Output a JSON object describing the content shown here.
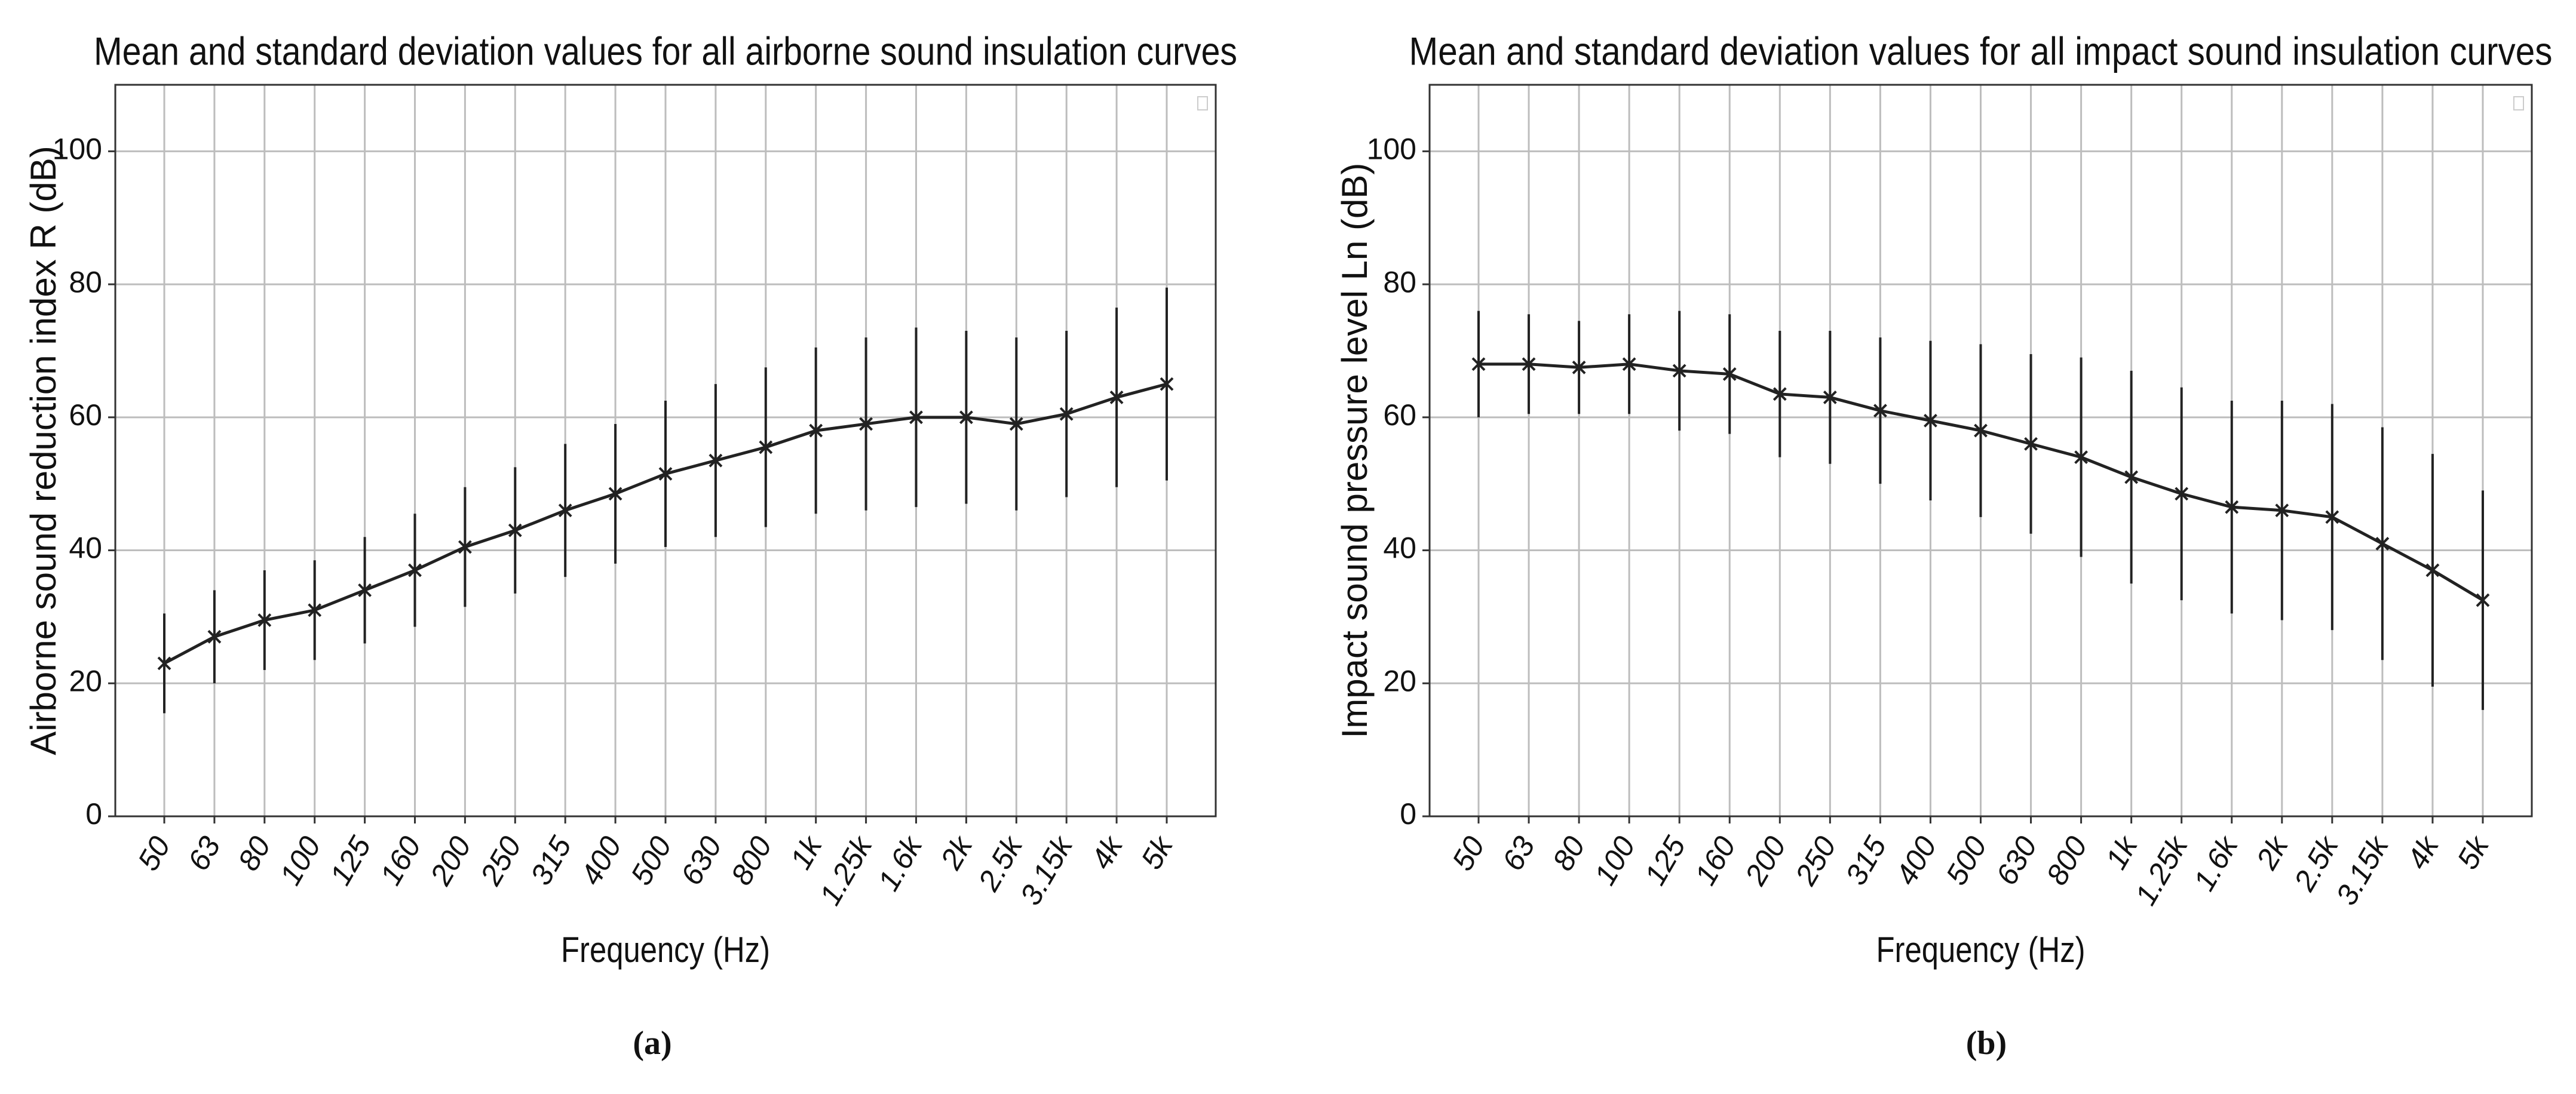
{
  "chart_data": [
    {
      "type": "errorbar",
      "title": "Mean and standard deviation values for all airborne sound insulation curves",
      "x_label": "Frequency (Hz)",
      "y_label": "Airborne sound reduction index R (dB)",
      "caption": "(a)",
      "categories": [
        "50",
        "63",
        "80",
        "100",
        "125",
        "160",
        "200",
        "250",
        "315",
        "400",
        "500",
        "630",
        "800",
        "1k",
        "1.25k",
        "1.6k",
        "2k",
        "2.5k",
        "3.15k",
        "4k",
        "5k"
      ],
      "values": [
        23,
        27,
        29.5,
        31,
        34,
        37,
        40.5,
        43,
        46,
        48.5,
        51.5,
        53.5,
        55.5,
        58,
        59,
        60,
        60,
        59,
        60.5,
        63,
        65
      ],
      "errors": [
        7.5,
        7,
        7.5,
        7.5,
        8,
        8.5,
        9,
        9.5,
        10,
        10.5,
        11,
        11.5,
        12,
        12.5,
        13,
        13.5,
        13,
        13,
        12.5,
        13.5,
        14.5
      ],
      "color": "#222222",
      "ylim": [
        0,
        110
      ],
      "yticks": [
        0,
        20,
        40,
        60,
        80,
        100
      ],
      "grid": true
    },
    {
      "type": "errorbar",
      "title": "Mean and standard deviation values for all impact sound insulation curves",
      "x_label": "Frequency (Hz)",
      "y_label": "Impact sound pressure level Ln (dB)",
      "caption": "(b)",
      "categories": [
        "50",
        "63",
        "80",
        "100",
        "125",
        "160",
        "200",
        "250",
        "315",
        "400",
        "500",
        "630",
        "800",
        "1k",
        "1.25k",
        "1.6k",
        "2k",
        "2.5k",
        "3.15k",
        "4k",
        "5k"
      ],
      "values": [
        68,
        68,
        67.5,
        68,
        67,
        66.5,
        63.5,
        63,
        61,
        59.5,
        58,
        56,
        54,
        51,
        48.5,
        46.5,
        46,
        45,
        41,
        37,
        32.5
      ],
      "errors": [
        8,
        7.5,
        7,
        7.5,
        9,
        9,
        9.5,
        10,
        11,
        12,
        13,
        13.5,
        15,
        16,
        16,
        16,
        16.5,
        17,
        17.5,
        17.5,
        16.5
      ],
      "color": "#222222",
      "ylim": [
        0,
        110
      ],
      "yticks": [
        0,
        20,
        40,
        60,
        80,
        100
      ],
      "grid": true
    }
  ]
}
